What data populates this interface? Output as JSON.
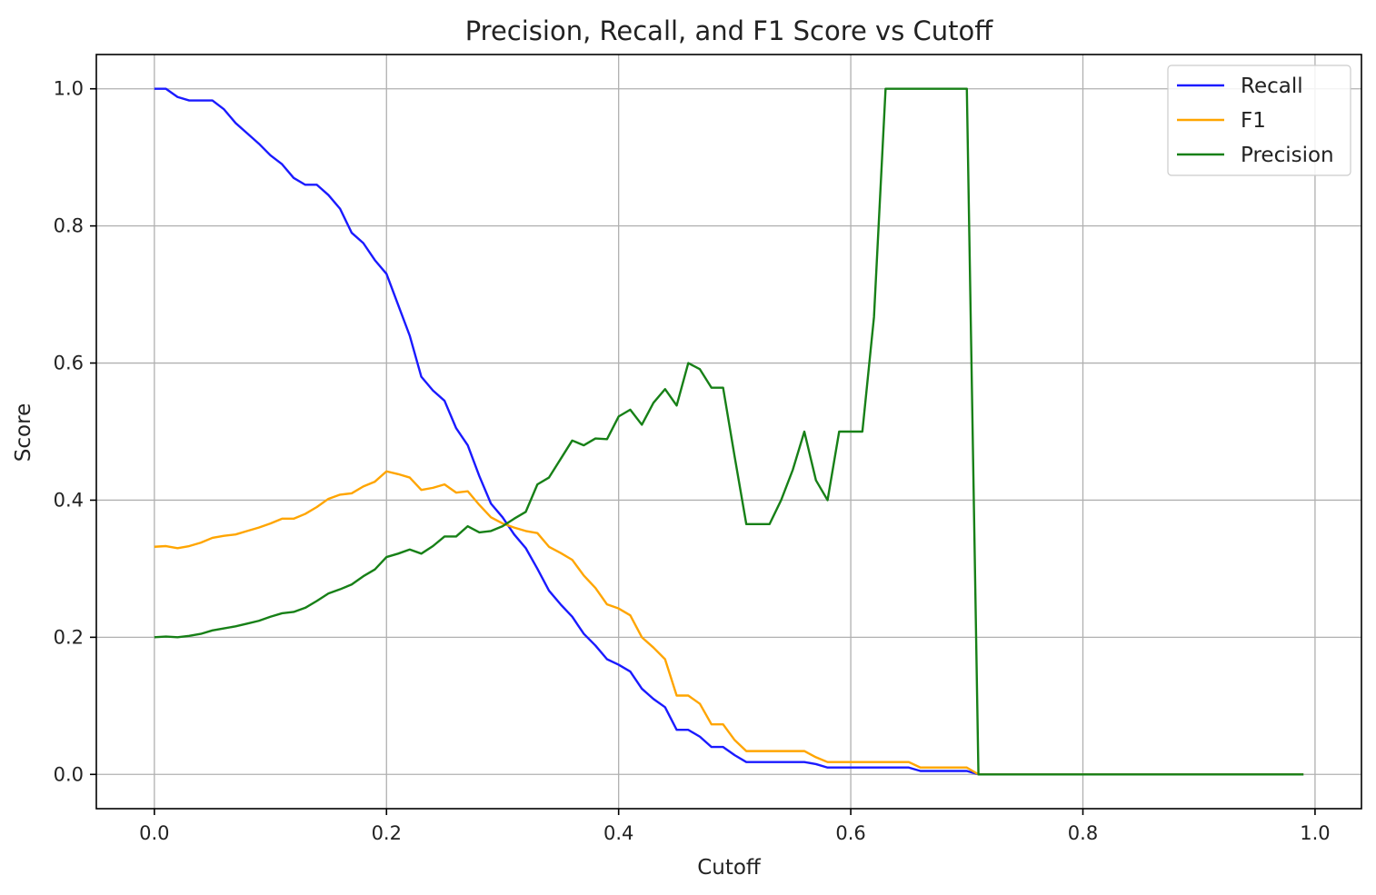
{
  "chart_data": {
    "type": "line",
    "title": "Precision, Recall, and F1 Score vs Cutoff",
    "xlabel": "Cutoff",
    "ylabel": "Score",
    "xlim": [
      -0.05,
      1.04
    ],
    "ylim": [
      -0.05,
      1.05
    ],
    "xticks": [
      0.0,
      0.2,
      0.4,
      0.6,
      0.8,
      1.0
    ],
    "xtick_labels": [
      "0.0",
      "0.2",
      "0.4",
      "0.6",
      "0.8",
      "1.0"
    ],
    "yticks": [
      0.0,
      0.2,
      0.4,
      0.6,
      0.8,
      1.0
    ],
    "ytick_labels": [
      "0.0",
      "0.2",
      "0.4",
      "0.6",
      "0.8",
      "1.0"
    ],
    "grid": true,
    "legend_position": "top-right",
    "x": [
      0.0,
      0.01,
      0.02,
      0.03,
      0.04,
      0.05,
      0.06,
      0.07,
      0.08,
      0.09,
      0.1,
      0.11,
      0.12,
      0.13,
      0.14,
      0.15,
      0.16,
      0.17,
      0.18,
      0.19,
      0.2,
      0.21,
      0.22,
      0.23,
      0.24,
      0.25,
      0.26,
      0.27,
      0.28,
      0.29,
      0.3,
      0.31,
      0.32,
      0.33,
      0.34,
      0.35,
      0.36,
      0.37,
      0.38,
      0.39,
      0.4,
      0.41,
      0.42,
      0.43,
      0.44,
      0.45,
      0.46,
      0.47,
      0.48,
      0.49,
      0.5,
      0.51,
      0.52,
      0.53,
      0.54,
      0.55,
      0.56,
      0.57,
      0.58,
      0.59,
      0.6,
      0.61,
      0.62,
      0.63,
      0.64,
      0.65,
      0.66,
      0.67,
      0.68,
      0.69,
      0.7,
      0.71,
      0.72,
      0.73,
      0.74,
      0.75,
      0.76,
      0.77,
      0.78,
      0.79,
      0.8,
      0.81,
      0.82,
      0.83,
      0.84,
      0.85,
      0.86,
      0.87,
      0.88,
      0.89,
      0.9,
      0.91,
      0.92,
      0.93,
      0.94,
      0.95,
      0.96,
      0.97,
      0.98,
      0.99
    ],
    "series": [
      {
        "name": "Recall",
        "color": "#1a1aff",
        "values": [
          1.0,
          1.0,
          0.988,
          0.983,
          0.983,
          0.983,
          0.97,
          0.95,
          0.935,
          0.92,
          0.903,
          0.89,
          0.87,
          0.86,
          0.86,
          0.845,
          0.825,
          0.79,
          0.775,
          0.75,
          0.73,
          0.685,
          0.64,
          0.58,
          0.56,
          0.545,
          0.505,
          0.48,
          0.435,
          0.395,
          0.375,
          0.35,
          0.33,
          0.3,
          0.268,
          0.248,
          0.23,
          0.205,
          0.188,
          0.168,
          0.16,
          0.15,
          0.125,
          0.11,
          0.098,
          0.065,
          0.065,
          0.055,
          0.04,
          0.04,
          0.028,
          0.018,
          0.018,
          0.018,
          0.018,
          0.018,
          0.018,
          0.015,
          0.01,
          0.01,
          0.01,
          0.01,
          0.01,
          0.01,
          0.01,
          0.01,
          0.005,
          0.005,
          0.005,
          0.005,
          0.005,
          0.0,
          0.0,
          0.0,
          0.0,
          0.0,
          0.0,
          0.0,
          0.0,
          0.0,
          0.0,
          0.0,
          0.0,
          0.0,
          0.0,
          0.0,
          0.0,
          0.0,
          0.0,
          0.0,
          0.0,
          0.0,
          0.0,
          0.0,
          0.0,
          0.0,
          0.0,
          0.0,
          0.0,
          0.0
        ]
      },
      {
        "name": "F1",
        "color": "#ffa500",
        "values": [
          0.332,
          0.333,
          0.33,
          0.333,
          0.338,
          0.345,
          0.348,
          0.35,
          0.355,
          0.36,
          0.366,
          0.373,
          0.373,
          0.38,
          0.39,
          0.402,
          0.408,
          0.41,
          0.42,
          0.427,
          0.442,
          0.438,
          0.433,
          0.415,
          0.418,
          0.423,
          0.411,
          0.413,
          0.393,
          0.375,
          0.366,
          0.36,
          0.355,
          0.352,
          0.332,
          0.323,
          0.313,
          0.29,
          0.272,
          0.248,
          0.242,
          0.232,
          0.2,
          0.185,
          0.168,
          0.115,
          0.115,
          0.103,
          0.073,
          0.073,
          0.05,
          0.034,
          0.034,
          0.034,
          0.034,
          0.034,
          0.034,
          0.025,
          0.018,
          0.018,
          0.018,
          0.018,
          0.018,
          0.018,
          0.018,
          0.018,
          0.01,
          0.01,
          0.01,
          0.01,
          0.01,
          0.0,
          0.0,
          0.0,
          0.0,
          0.0,
          0.0,
          0.0,
          0.0,
          0.0,
          0.0,
          0.0,
          0.0,
          0.0,
          0.0,
          0.0,
          0.0,
          0.0,
          0.0,
          0.0,
          0.0,
          0.0,
          0.0,
          0.0,
          0.0,
          0.0,
          0.0,
          0.0,
          0.0,
          0.0
        ]
      },
      {
        "name": "Precision",
        "color": "#178017",
        "values": [
          0.2,
          0.201,
          0.2,
          0.202,
          0.205,
          0.21,
          0.213,
          0.216,
          0.22,
          0.224,
          0.23,
          0.235,
          0.237,
          0.243,
          0.253,
          0.264,
          0.27,
          0.277,
          0.289,
          0.299,
          0.317,
          0.322,
          0.328,
          0.322,
          0.333,
          0.347,
          0.347,
          0.362,
          0.353,
          0.355,
          0.362,
          0.373,
          0.383,
          0.423,
          0.433,
          0.46,
          0.487,
          0.48,
          0.49,
          0.489,
          0.522,
          0.532,
          0.51,
          0.542,
          0.562,
          0.538,
          0.6,
          0.591,
          0.564,
          0.564,
          0.463,
          0.365,
          0.365,
          0.365,
          0.4,
          0.444,
          0.5,
          0.429,
          0.4,
          0.5,
          0.5,
          0.5,
          0.667,
          1.0,
          1.0,
          1.0,
          1.0,
          1.0,
          1.0,
          1.0,
          1.0,
          0.0,
          0.0,
          0.0,
          0.0,
          0.0,
          0.0,
          0.0,
          0.0,
          0.0,
          0.0,
          0.0,
          0.0,
          0.0,
          0.0,
          0.0,
          0.0,
          0.0,
          0.0,
          0.0,
          0.0,
          0.0,
          0.0,
          0.0,
          0.0,
          0.0,
          0.0,
          0.0,
          0.0,
          0.0
        ]
      }
    ]
  }
}
